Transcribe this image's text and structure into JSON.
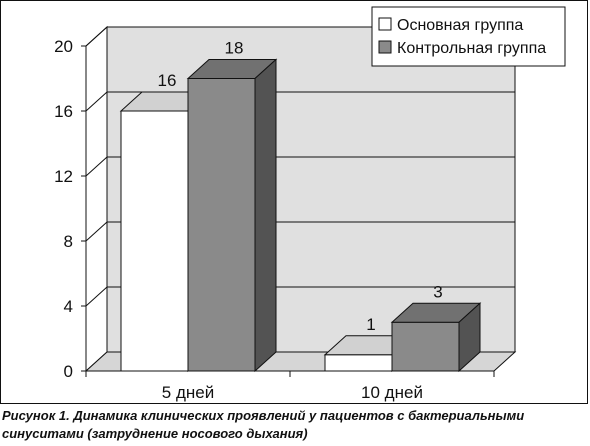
{
  "caption": {
    "text": "Рисунок 1. Динамика клинических проявлений у пациентов с бактериальными синуситами (затруднение носового дыхания)"
  },
  "chart_data": {
    "type": "bar",
    "title": "",
    "xlabel": "",
    "ylabel": "",
    "categories": [
      "5 дней",
      "10 дней"
    ],
    "series": [
      {
        "name": "Основная группа",
        "values": [
          16,
          1
        ],
        "color": "#ffffff"
      },
      {
        "name": "Контрольная группа",
        "values": [
          18,
          3
        ],
        "color": "#8a8a8a"
      }
    ],
    "ylim": [
      0,
      20
    ],
    "yticks": [
      0,
      4,
      8,
      12,
      16,
      20
    ],
    "grid": true,
    "legend": "top-right",
    "style": "3d",
    "wall_color": "#e0e0e0"
  }
}
